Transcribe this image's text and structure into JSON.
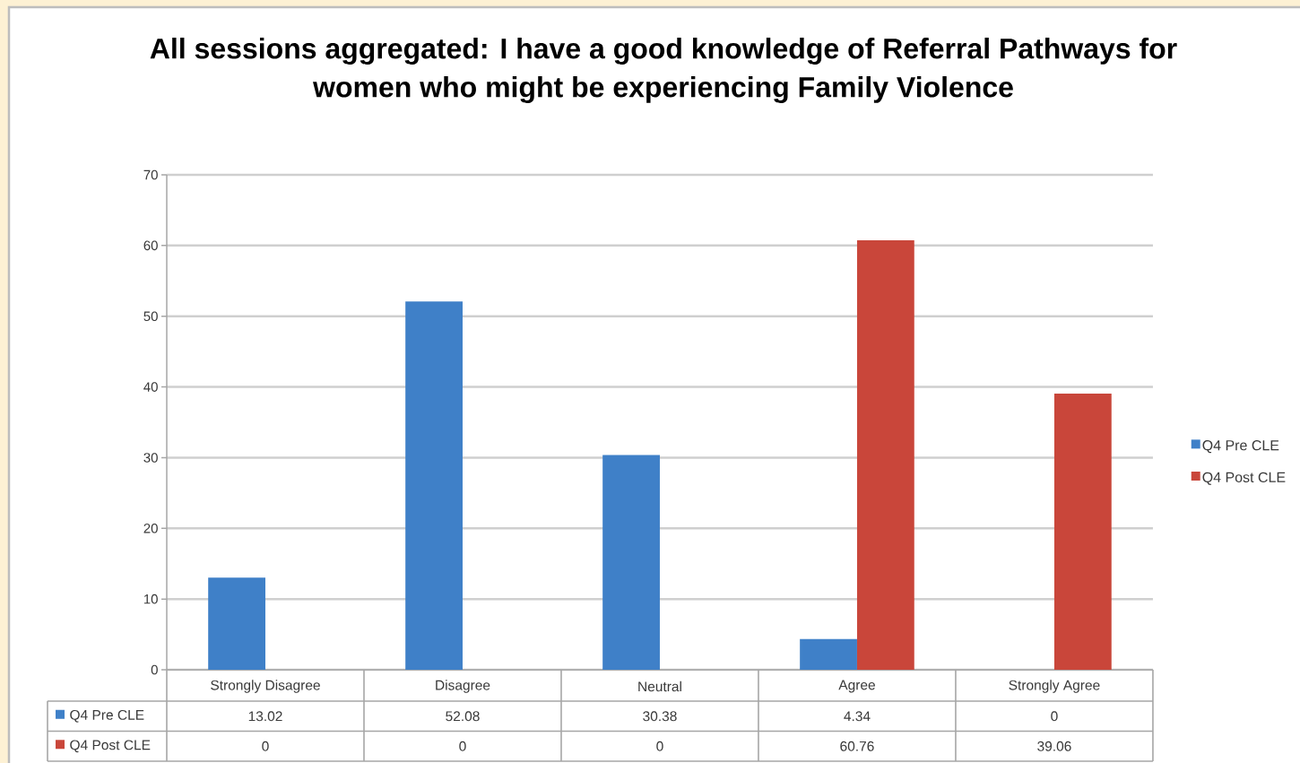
{
  "chart_data": {
    "type": "bar",
    "title": "All sessions aggregated: I have a good knowledge of Referral Pathways for women who might be experiencing Family Violence",
    "categories": [
      "Strongly Disagree",
      "Disagree",
      "Neutral",
      "Agree",
      "Strongly Agree"
    ],
    "series": [
      {
        "name": "Q4 Pre CLE",
        "color": "#3f80c8",
        "values": [
          13.02,
          52.08,
          30.38,
          4.34,
          0
        ]
      },
      {
        "name": "Q4 Post CLE",
        "color": "#c9463a",
        "values": [
          0,
          0,
          0,
          60.76,
          39.06
        ]
      }
    ],
    "ylim": [
      0,
      70
    ],
    "yticks": [
      0,
      10,
      20,
      30,
      40,
      50,
      60,
      70
    ],
    "grid": "y",
    "legend": "right",
    "data_labels": true
  }
}
